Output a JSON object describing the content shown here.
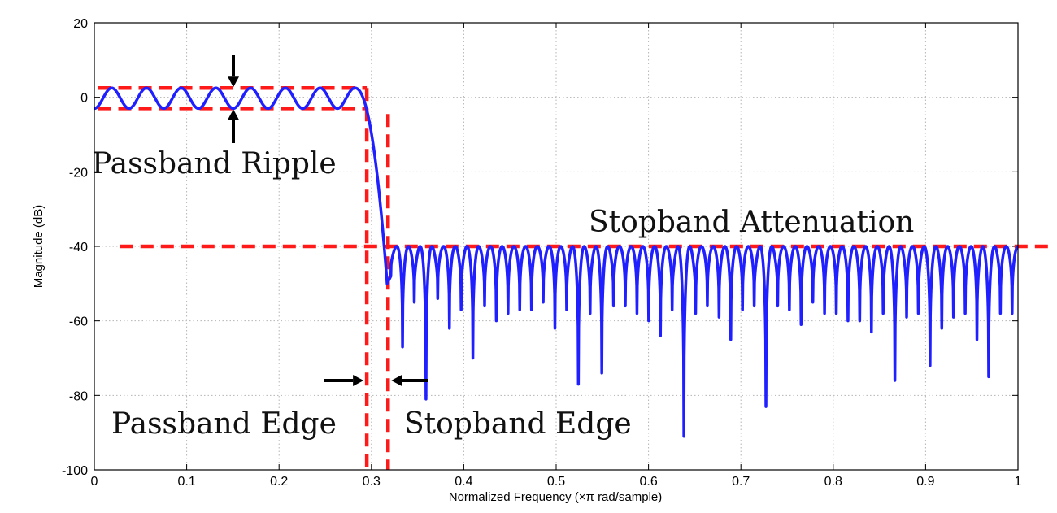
{
  "chart_data": {
    "type": "line",
    "title": "",
    "xlabel": "Normalized Frequency  (×π rad/sample)",
    "ylabel": "Magnitude (dB)",
    "xlim": [
      0,
      1
    ],
    "ylim": [
      -100,
      20
    ],
    "xticks": [
      "0",
      "0.1",
      "0.2",
      "0.3",
      "0.4",
      "0.5",
      "0.6",
      "0.7",
      "0.8",
      "0.9",
      "1"
    ],
    "yticks": [
      "20",
      "0",
      "-20",
      "-40",
      "-60",
      "-80",
      "-100"
    ],
    "grid": true,
    "series_color": "#1f1fff",
    "spec_color": "#ff1a1a",
    "passband_ripple_db": [
      -3,
      2.5
    ],
    "passband_edge": 0.295,
    "stopband_edge": 0.318,
    "stopband_attenuation_db": -40,
    "stopband_null_depths": [
      -48,
      -67,
      -55,
      -81,
      -54,
      -62,
      -57,
      -70,
      -56,
      -60,
      -58,
      -57,
      -57,
      -55,
      -62,
      -57,
      -77,
      -58,
      -74,
      -56,
      -56,
      -58,
      -60,
      -64,
      -57,
      -91,
      -58,
      -56,
      -59,
      -65,
      -57,
      -56,
      -83,
      -56,
      -57,
      -61,
      -55,
      -58,
      -58,
      -60,
      -60,
      -63,
      -58,
      -76,
      -59,
      -58,
      -72,
      -62,
      -59,
      -58,
      -65,
      -75,
      -58,
      -58
    ],
    "annotations": [
      "Passband Ripple",
      "Stopband Attenuation",
      "Passband Edge",
      "Stopband Edge"
    ]
  }
}
